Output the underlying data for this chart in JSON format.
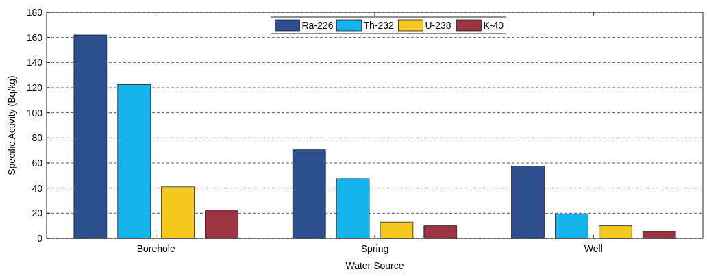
{
  "chart_data": {
    "type": "bar",
    "xlabel": "Water Source",
    "ylabel": "Specific Activity (Bq/kg)",
    "categories": [
      "Borehole",
      "Spring",
      "Well"
    ],
    "series": [
      {
        "name": "Ra-226",
        "color": "#2e4f8f",
        "values": [
          162,
          70.5,
          57.5
        ]
      },
      {
        "name": "Th-232",
        "color": "#12b4ec",
        "values": [
          122.5,
          47.5,
          19.5
        ]
      },
      {
        "name": "U-238",
        "color": "#f5c820",
        "values": [
          41,
          13,
          10
        ]
      },
      {
        "name": "K-40",
        "color": "#9b3440",
        "values": [
          22.5,
          10,
          5.5
        ]
      }
    ],
    "ylim": [
      0,
      180
    ],
    "yticks": [
      0,
      20,
      40,
      60,
      80,
      100,
      120,
      140,
      160,
      180
    ],
    "grid": "y",
    "legend": "top"
  }
}
